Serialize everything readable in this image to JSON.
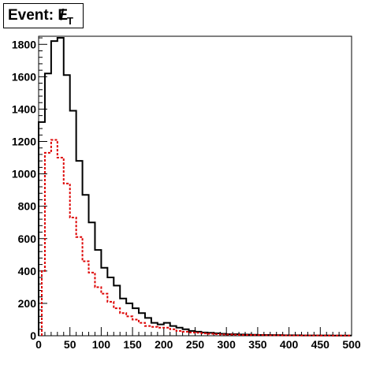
{
  "title": {
    "prefix": "Event: ",
    "variable": "E",
    "slash": "/",
    "subscript": "T"
  },
  "chart_data": {
    "type": "histogram",
    "xlim": [
      0,
      500
    ],
    "ylim": [
      0,
      1850
    ],
    "bin_width": 10,
    "x_ticks": [
      0,
      50,
      100,
      150,
      200,
      250,
      300,
      350,
      400,
      450,
      500
    ],
    "y_ticks": [
      0,
      200,
      400,
      600,
      800,
      1000,
      1200,
      1400,
      1600,
      1800
    ],
    "grid": false,
    "series": [
      {
        "color": "#000000",
        "style": "solid",
        "bin_edges_start": 0,
        "values": [
          1320,
          1620,
          1820,
          1840,
          1610,
          1390,
          1080,
          870,
          700,
          530,
          420,
          360,
          310,
          230,
          200,
          170,
          140,
          110,
          80,
          70,
          80,
          60,
          50,
          40,
          30,
          25,
          20,
          18,
          15,
          12,
          10,
          10,
          8,
          7,
          6,
          5,
          5,
          4,
          4,
          3,
          3,
          3,
          2,
          2,
          2,
          2,
          2,
          1,
          1,
          1
        ]
      },
      {
        "color": "#dd0000",
        "style": "dotted",
        "bin_edges_start": 0,
        "values": [
          880,
          1130,
          1210,
          1100,
          940,
          730,
          610,
          460,
          390,
          300,
          260,
          210,
          170,
          140,
          120,
          100,
          80,
          60,
          55,
          50,
          50,
          40,
          30,
          25,
          20,
          18,
          15,
          12,
          10,
          8,
          7,
          6,
          5,
          5,
          4,
          4,
          3,
          3,
          3,
          2,
          2,
          2,
          2,
          2,
          2,
          1,
          1,
          1,
          1,
          1
        ]
      }
    ],
    "red_lowest_bin": {
      "x_start": 5,
      "value": 400
    }
  }
}
